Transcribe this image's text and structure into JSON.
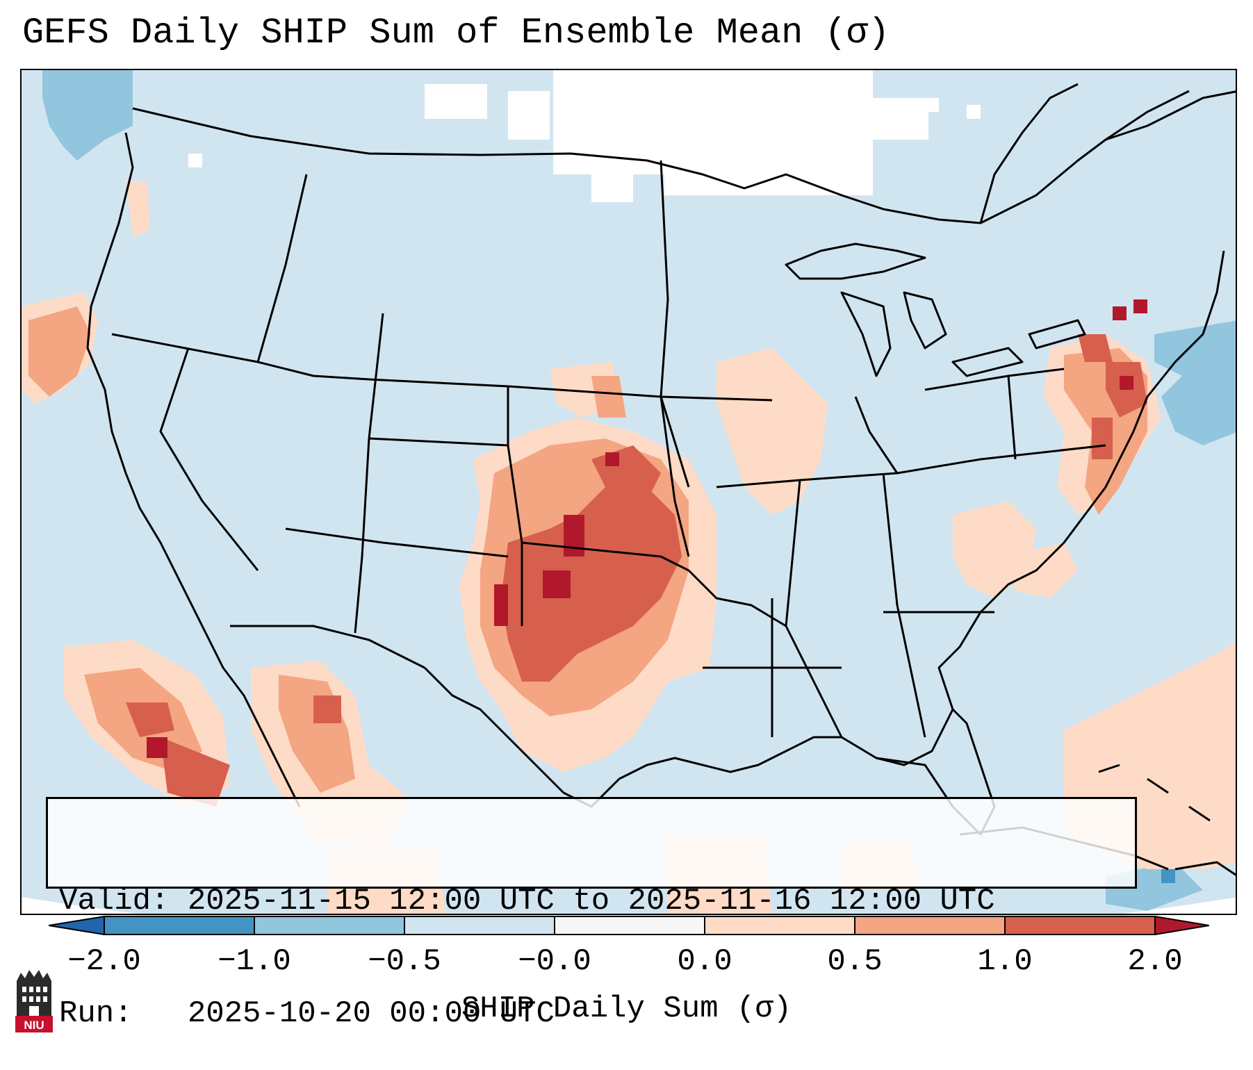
{
  "title": "GEFS Daily SHIP Sum of Ensemble Mean (σ)",
  "info_box": {
    "valid": "Valid: 2025-11-15 12:00 UTC to 2025-11-16 12:00 UTC",
    "run": "Run:   2025-10-20 00:00 UTC"
  },
  "colorbar": {
    "label": "SHIP Daily Sum (σ)",
    "ticks": [
      "−2.0",
      "−1.0",
      "−0.5",
      "−0.0",
      "0.0",
      "0.5",
      "1.0",
      "2.0"
    ],
    "colors": {
      "lt_neg2": "#2166ac",
      "neg2_neg1": "#4393c3",
      "neg1_neg05": "#92c5de",
      "neg05_0": "#d1e5f0",
      "zero": "#f7f7f7",
      "zero_05": "#fddbc7",
      "p05_1": "#f4a582",
      "p1_2": "#d6604d",
      "gt_2": "#b2182b"
    }
  },
  "map": {
    "region": "Continental United States, southern Canada, northern Mexico, Gulf of Mexico and Caribbean",
    "highlight": "positive SHIP anomalies over the Southern Plains (Oklahoma, Texas, Kansas) and the Northeast coast"
  },
  "logo": {
    "text": "NIU"
  }
}
